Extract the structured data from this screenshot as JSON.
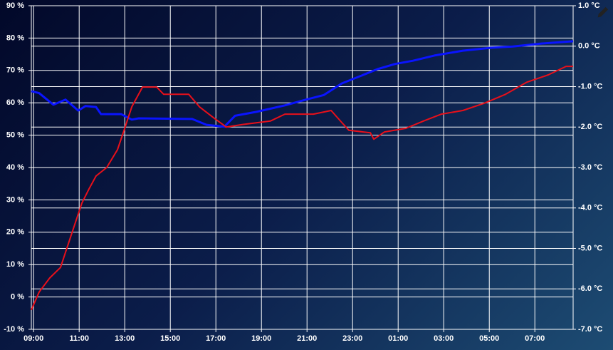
{
  "chart_data": {
    "type": "line",
    "xlim": [
      8.9,
      32.68
    ],
    "xticks": [
      {
        "value": 9,
        "label": "09:00"
      },
      {
        "value": 11,
        "label": "11:00"
      },
      {
        "value": 13,
        "label": "13:00"
      },
      {
        "value": 15,
        "label": "15:00"
      },
      {
        "value": 17,
        "label": "17:00"
      },
      {
        "value": 19,
        "label": "19:00"
      },
      {
        "value": 21,
        "label": "21:00"
      },
      {
        "value": 23,
        "label": "23:00"
      },
      {
        "value": 25,
        "label": "01:00"
      },
      {
        "value": 27,
        "label": "03:00"
      },
      {
        "value": 29,
        "label": "05:00"
      },
      {
        "value": 31,
        "label": "07:00"
      }
    ],
    "ylim": [
      -10,
      90
    ],
    "yticks": [
      {
        "value": 90,
        "label": "90 %"
      },
      {
        "value": 80,
        "label": "80 %"
      },
      {
        "value": 70,
        "label": "70 %"
      },
      {
        "value": 60,
        "label": "60 %"
      },
      {
        "value": 50,
        "label": "50 %"
      },
      {
        "value": 40,
        "label": "40 %"
      },
      {
        "value": 30,
        "label": "30 %"
      },
      {
        "value": 20,
        "label": "20 %"
      },
      {
        "value": 10,
        "label": "10 %"
      },
      {
        "value": 0,
        "label": "0 %"
      },
      {
        "value": -10,
        "label": "-10 %"
      }
    ],
    "y2lim": [
      -7,
      1
    ],
    "y2ticks": [
      {
        "value": 1,
        "label": "1.0 °C"
      },
      {
        "value": 0,
        "label": "0.0 °C"
      },
      {
        "value": -1,
        "label": "-1.0 °C"
      },
      {
        "value": -2,
        "label": "-2.0 °C"
      },
      {
        "value": -3,
        "label": "-3.0 °C"
      },
      {
        "value": -4,
        "label": "-4.0 °C"
      },
      {
        "value": -5,
        "label": "-5.0 °C"
      },
      {
        "value": -6,
        "label": "-6.0 °C"
      },
      {
        "value": -7,
        "label": "-7.0 °C"
      }
    ],
    "grid": true,
    "series": [
      {
        "color": "#0a14ff",
        "axis": "y",
        "x": [
          8.9,
          9.24,
          9.87,
          10.4,
          10.96,
          11.28,
          11.74,
          11.96,
          12.84,
          13.31,
          13.62,
          15.96,
          16.59,
          17.37,
          17.84,
          18.78,
          20.03,
          20.96,
          21.74,
          22.53,
          23.46,
          24.09,
          24.87,
          25.65,
          26.59,
          27.84,
          29.09,
          30.03,
          31.28,
          32.68
        ],
        "values": [
          63.6,
          63,
          59.4,
          61,
          57.6,
          59,
          58.7,
          56.5,
          56.5,
          54.8,
          55.2,
          55,
          53.2,
          52.6,
          56,
          57.2,
          59.2,
          61,
          62.4,
          66,
          68.6,
          70.4,
          72,
          73,
          74.6,
          76.1,
          77,
          77.4,
          78.3,
          79
        ]
      },
      {
        "color": "#e8101a",
        "axis": "y2",
        "x": [
          8.9,
          9.24,
          9.71,
          10.18,
          10.65,
          11.12,
          11.43,
          11.74,
          12.21,
          12.68,
          13.0,
          13.31,
          13.78,
          14.4,
          14.71,
          15.81,
          16.28,
          16.9,
          17.46,
          18.15,
          19.4,
          20.03,
          21.28,
          22.06,
          22.53,
          22.84,
          23.78,
          23.93,
          24.4,
          25.34,
          26.12,
          26.9,
          27.84,
          28.78,
          29.71,
          30.65,
          31.59,
          32.37,
          32.68
        ],
        "values": [
          -6.52,
          -6.08,
          -5.73,
          -5.47,
          -4.67,
          -3.88,
          -3.53,
          -3.21,
          -3.0,
          -2.56,
          -2.03,
          -1.5,
          -1.01,
          -1.01,
          -1.19,
          -1.19,
          -1.5,
          -1.77,
          -2.0,
          -1.94,
          -1.85,
          -1.68,
          -1.68,
          -1.59,
          -1.89,
          -2.08,
          -2.14,
          -2.3,
          -2.12,
          -2.03,
          -1.85,
          -1.68,
          -1.59,
          -1.41,
          -1.19,
          -0.89,
          -0.71,
          -0.5,
          -0.5
        ]
      }
    ]
  }
}
